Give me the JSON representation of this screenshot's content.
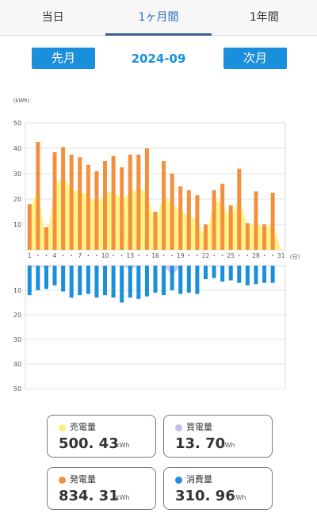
{
  "tabs": [
    {
      "label": "当日",
      "active": false
    },
    {
      "label": "1ヶ月間",
      "active": true
    },
    {
      "label": "1年間",
      "active": false
    }
  ],
  "nav": {
    "prev_label": "先月",
    "next_label": "次月",
    "period": "2024-09"
  },
  "chart_data": {
    "type": "bar",
    "unit_label": "(kWh)",
    "x_unit_label": "(日)",
    "x": [
      1,
      2,
      3,
      4,
      5,
      6,
      7,
      8,
      9,
      10,
      11,
      12,
      13,
      14,
      15,
      16,
      17,
      18,
      19,
      20,
      21,
      22,
      23,
      24,
      25,
      26,
      27,
      28,
      29,
      30,
      31
    ],
    "x_tick_labels": [
      "1",
      "・",
      "・",
      "4",
      "・",
      "・",
      "7",
      "・",
      "・",
      "10",
      "・",
      "・",
      "13",
      "・",
      "・",
      "16",
      "・",
      "・",
      "19",
      "・",
      "・",
      "22",
      "・",
      "・",
      "25",
      "・",
      "・",
      "28",
      "・",
      "・",
      "31"
    ],
    "upper": {
      "ylim": [
        0,
        50
      ],
      "yticks": [
        "50",
        "40",
        "30",
        "20",
        "10"
      ],
      "series": [
        {
          "name": "発電量",
          "color": "#f4903d",
          "chart": "bar",
          "values": [
            18,
            42.5,
            9,
            38.5,
            40.5,
            37.5,
            36.5,
            33.5,
            31,
            35,
            37,
            32.5,
            37.5,
            37.5,
            40,
            15,
            35,
            30,
            25,
            23.5,
            21.5,
            10,
            23.5,
            26,
            17.5,
            32,
            10.5,
            23,
            10,
            22.5,
            0
          ]
        },
        {
          "name": "売電量",
          "color": "#fff176",
          "chart": "area",
          "values": [
            16,
            24,
            3,
            25,
            29,
            23.5,
            23,
            21.5,
            18,
            22,
            23.5,
            19.5,
            22.5,
            24,
            23,
            10,
            22,
            18,
            16,
            13,
            12,
            4,
            20,
            18,
            12,
            21,
            9,
            11,
            8,
            11,
            0
          ]
        }
      ]
    },
    "lower": {
      "ylim": [
        0,
        50
      ],
      "yticks": [
        "10",
        "20",
        "30",
        "40",
        "50"
      ],
      "series": [
        {
          "name": "消費量",
          "color": "#1a8fdc",
          "chart": "bar",
          "values": [
            12,
            10,
            9.5,
            8,
            10.5,
            13,
            12,
            11.5,
            13,
            12,
            13,
            15,
            13,
            13.5,
            12.5,
            11,
            12,
            10,
            11.5,
            11,
            11.5,
            5.5,
            5,
            6.5,
            6,
            7,
            8,
            7.5,
            7,
            7,
            0
          ]
        },
        {
          "name": "買電量",
          "color": "#c8bdf0",
          "chart": "area",
          "values": [
            1,
            0,
            1,
            0,
            0,
            0,
            0,
            0,
            0,
            0,
            0,
            0,
            1.5,
            0,
            0,
            0,
            0,
            4,
            0,
            0,
            0,
            0,
            0.5,
            0,
            0,
            0,
            0,
            0,
            0,
            0,
            0
          ]
        }
      ]
    }
  },
  "summary": [
    {
      "label": "売電量",
      "value": "500. 43",
      "unit": "kWh",
      "color": "#fff176"
    },
    {
      "label": "買電量",
      "value": "13. 70",
      "unit": "kWh",
      "color": "#c8bdf0"
    },
    {
      "label": "発電量",
      "value": "834. 31",
      "unit": "kWh",
      "color": "#f4903d"
    },
    {
      "label": "消費量",
      "value": "310. 96",
      "unit": "kWh",
      "color": "#1a8fdc"
    }
  ]
}
